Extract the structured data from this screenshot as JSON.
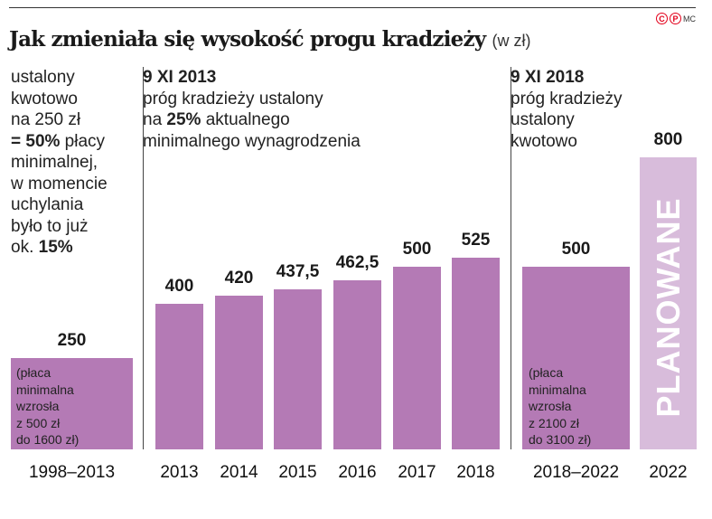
{
  "chart_data": {
    "type": "bar",
    "title": "Jak zmieniała się wysokość progu kradzieży",
    "unit": "(w zł)",
    "categories": [
      "1998–2013",
      "2013",
      "2014",
      "2015",
      "2016",
      "2017",
      "2018",
      "2018–2022",
      "2022"
    ],
    "values": [
      250,
      400,
      420,
      437.5,
      462.5,
      500,
      525,
      500,
      800
    ],
    "value_labels": [
      "250",
      "400",
      "420",
      "437,5",
      "462,5",
      "500",
      "525",
      "500",
      "800"
    ],
    "planned": [
      false,
      false,
      false,
      false,
      false,
      false,
      false,
      false,
      true
    ],
    "ylim": [
      0,
      800
    ],
    "colors": {
      "bar": "#b47ab5",
      "planned": "#d8bcdb"
    }
  },
  "credit": {
    "c": "C",
    "p": "P",
    "author": "MC"
  },
  "notes": {
    "left": [
      "ustalony",
      "kwotowo",
      "na 250 zł"
    ],
    "left_bold_1": "= 50%",
    "left_rest_1": " płacy",
    "left_more": [
      "minimalnej,",
      "w momencie",
      "uchylania",
      "było to już"
    ],
    "left_last_pre": "ok. ",
    "left_last_bold": "15%",
    "mid_title": "9 XI 2013",
    "mid_line1": "próg kradzieży ustalony",
    "mid_pre": "na ",
    "mid_bold": "25%",
    "mid_post": " aktualnego",
    "mid_line3": "minimalnego wynagrodzenia",
    "right_title": "9 XI 2018",
    "right_lines": [
      "próg kradzieży",
      "ustalony",
      "kwotowo"
    ]
  },
  "inbar": {
    "first": [
      "(płaca",
      "minimalna",
      "wzrosła",
      "z 500 zł",
      "do 1600 zł)"
    ],
    "second": [
      "(płaca",
      "minimalna",
      "wzrosła",
      "z 2100 zł",
      "do 3100 zł)"
    ]
  },
  "planned_label": "PLANOWANE"
}
